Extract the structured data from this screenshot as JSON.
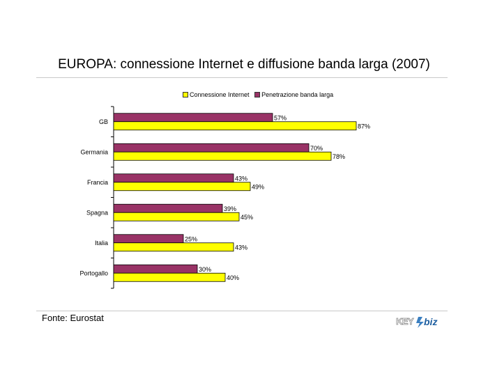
{
  "title": "EUROPA: connessione Internet e diffusione banda larga  (2007)",
  "source": "Fonte: Eurostat",
  "logo": "KEY4biz",
  "colors": {
    "connessione": "#ffff00",
    "penetrazione": "#993366",
    "axis": "#000000"
  },
  "chart_data": {
    "type": "bar",
    "orientation": "horizontal",
    "categories": [
      "GB",
      "Germania",
      "Francia",
      "Spagna",
      "Italia",
      "Portogallo"
    ],
    "series": [
      {
        "name": "Connessione Internet",
        "values": [
          87,
          78,
          49,
          45,
          43,
          40
        ],
        "color": "#ffff00"
      },
      {
        "name": "Penetrazione banda larga",
        "values": [
          57,
          70,
          43,
          39,
          25,
          30
        ],
        "color": "#993366"
      }
    ],
    "value_suffix": "%",
    "xlim": [
      0,
      100
    ],
    "legend": "top",
    "grid": false
  }
}
